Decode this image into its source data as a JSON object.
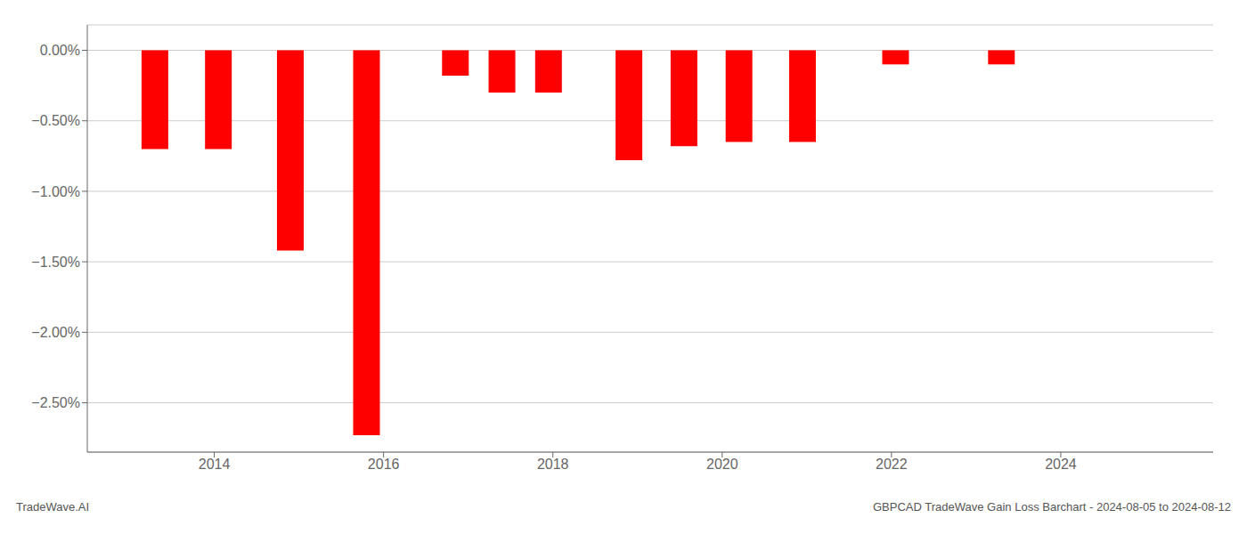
{
  "chart_data": {
    "type": "bar",
    "x": [
      2013.3,
      2014.05,
      2014.9,
      2015.8,
      2016.85,
      2017.4,
      2017.95,
      2018.9,
      2019.55,
      2020.2,
      2020.95,
      2022.05,
      2023.3
    ],
    "values": [
      -0.7,
      -0.7,
      -1.42,
      -2.73,
      -0.18,
      -0.3,
      -0.3,
      -0.78,
      -0.68,
      -0.65,
      -0.65,
      -0.1,
      -0.1
    ],
    "color": "#ff0000",
    "xlim": [
      2012.5,
      2025.8
    ],
    "xticks": [
      2014,
      2016,
      2018,
      2020,
      2022,
      2024
    ],
    "ylim": [
      -2.85,
      0.18
    ],
    "yticks": [
      {
        "value": 0.0,
        "label": "0.00%"
      },
      {
        "value": -0.5,
        "label": "−0.50%"
      },
      {
        "value": -1.0,
        "label": "−1.00%"
      },
      {
        "value": -1.5,
        "label": "−1.50%"
      },
      {
        "value": -2.0,
        "label": "−2.00%"
      },
      {
        "value": -2.5,
        "label": "−2.50%"
      }
    ],
    "grid": "y",
    "annotations": [
      "TradeWave.AI",
      "GBPCAD TradeWave Gain Loss Barchart - 2024-08-05 to 2024-08-12"
    ]
  }
}
